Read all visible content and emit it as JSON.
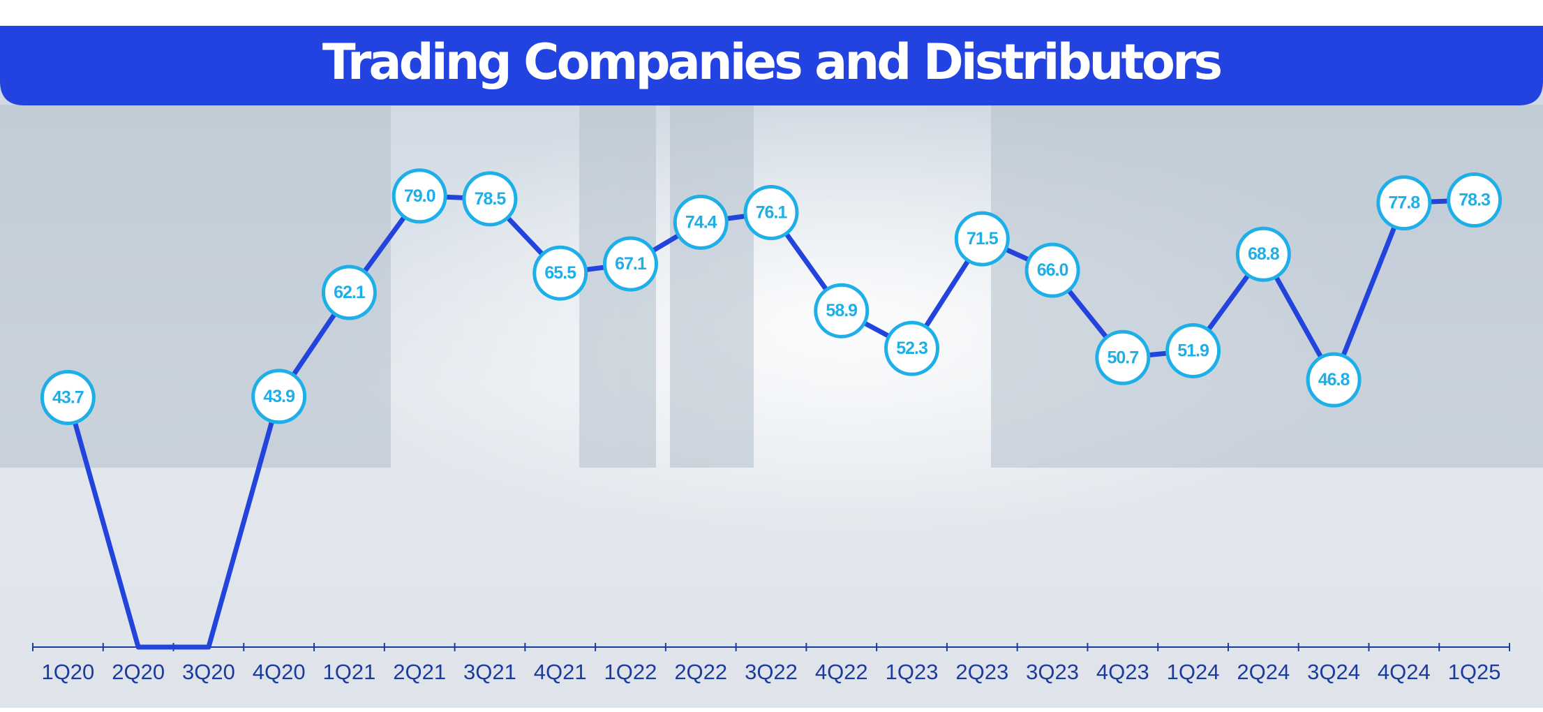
{
  "chart_data": {
    "type": "line",
    "title": "Trading Companies and Distributors",
    "categories": [
      "1Q20",
      "2Q20",
      "3Q20",
      "4Q20",
      "1Q21",
      "2Q21",
      "3Q21",
      "4Q21",
      "1Q22",
      "2Q22",
      "3Q22",
      "4Q22",
      "1Q23",
      "2Q23",
      "3Q23",
      "4Q23",
      "1Q24",
      "2Q24",
      "3Q24",
      "4Q24",
      "1Q25"
    ],
    "series": [
      {
        "name": "Trading Companies and Distributors",
        "color": "#2243dc",
        "values": [
          43.7,
          0,
          0,
          43.9,
          62.1,
          79.0,
          78.5,
          65.5,
          67.1,
          74.4,
          76.1,
          58.9,
          52.3,
          71.5,
          66.0,
          50.7,
          51.9,
          68.8,
          46.8,
          77.8,
          78.3
        ],
        "value_labels": [
          "43.7",
          null,
          null,
          "43.9",
          "62.1",
          "79.0",
          "78.5",
          "65.5",
          "67.1",
          "74.4",
          "76.1",
          "58.9",
          "52.3",
          "71.5",
          "66.0",
          "50.7",
          "51.9",
          "68.8",
          "46.8",
          "77.8",
          "78.3"
        ],
        "marker_color": "#1eaee8"
      }
    ],
    "ylim": [
      0,
      100
    ],
    "grid": false
  }
}
